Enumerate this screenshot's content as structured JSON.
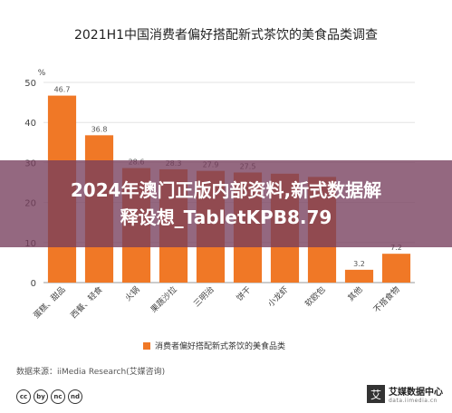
{
  "chart_data": {
    "type": "bar",
    "title": "2021H1中国消费者偏好搭配新式茶饮的美食品类调查",
    "ylabel": "%",
    "ylim": [
      0,
      50
    ],
    "yticks": [
      0,
      10,
      20,
      30,
      40,
      50
    ],
    "categories": [
      "蛋糕、甜品",
      "西餐、轻食",
      "火锅",
      "果蔬沙拉",
      "三明治",
      "饼干",
      "小龙虾",
      "软欧包",
      "其他",
      "不搭食物"
    ],
    "series": [
      {
        "name": "消费者偏好搭配新式茶饮的美食品类",
        "values": [
          46.7,
          36.8,
          28.6,
          28.3,
          27.9,
          27.5,
          27.2,
          26.4,
          3.2,
          7.2
        ],
        "data_labels": [
          "46.7",
          "36.8",
          "28.6",
          "28.3",
          "27.9",
          "27.5",
          "",
          "",
          "3.2",
          "7.2"
        ]
      }
    ],
    "bar_color": "#f07826",
    "grid": true,
    "legend_position": "bottom"
  },
  "overlay": {
    "line1": "2024年澳门正版内部资料,新式数据解",
    "line2": "释设想_TabletKPB8.79"
  },
  "source": "数据来源：iiMedia Research(艾媒咨询)",
  "license_icons": [
    "cc",
    "by",
    "nc",
    "nd"
  ],
  "brand": {
    "logo": "艾",
    "name": "艾媒数据中心",
    "url": "data.iimedia.cn"
  }
}
